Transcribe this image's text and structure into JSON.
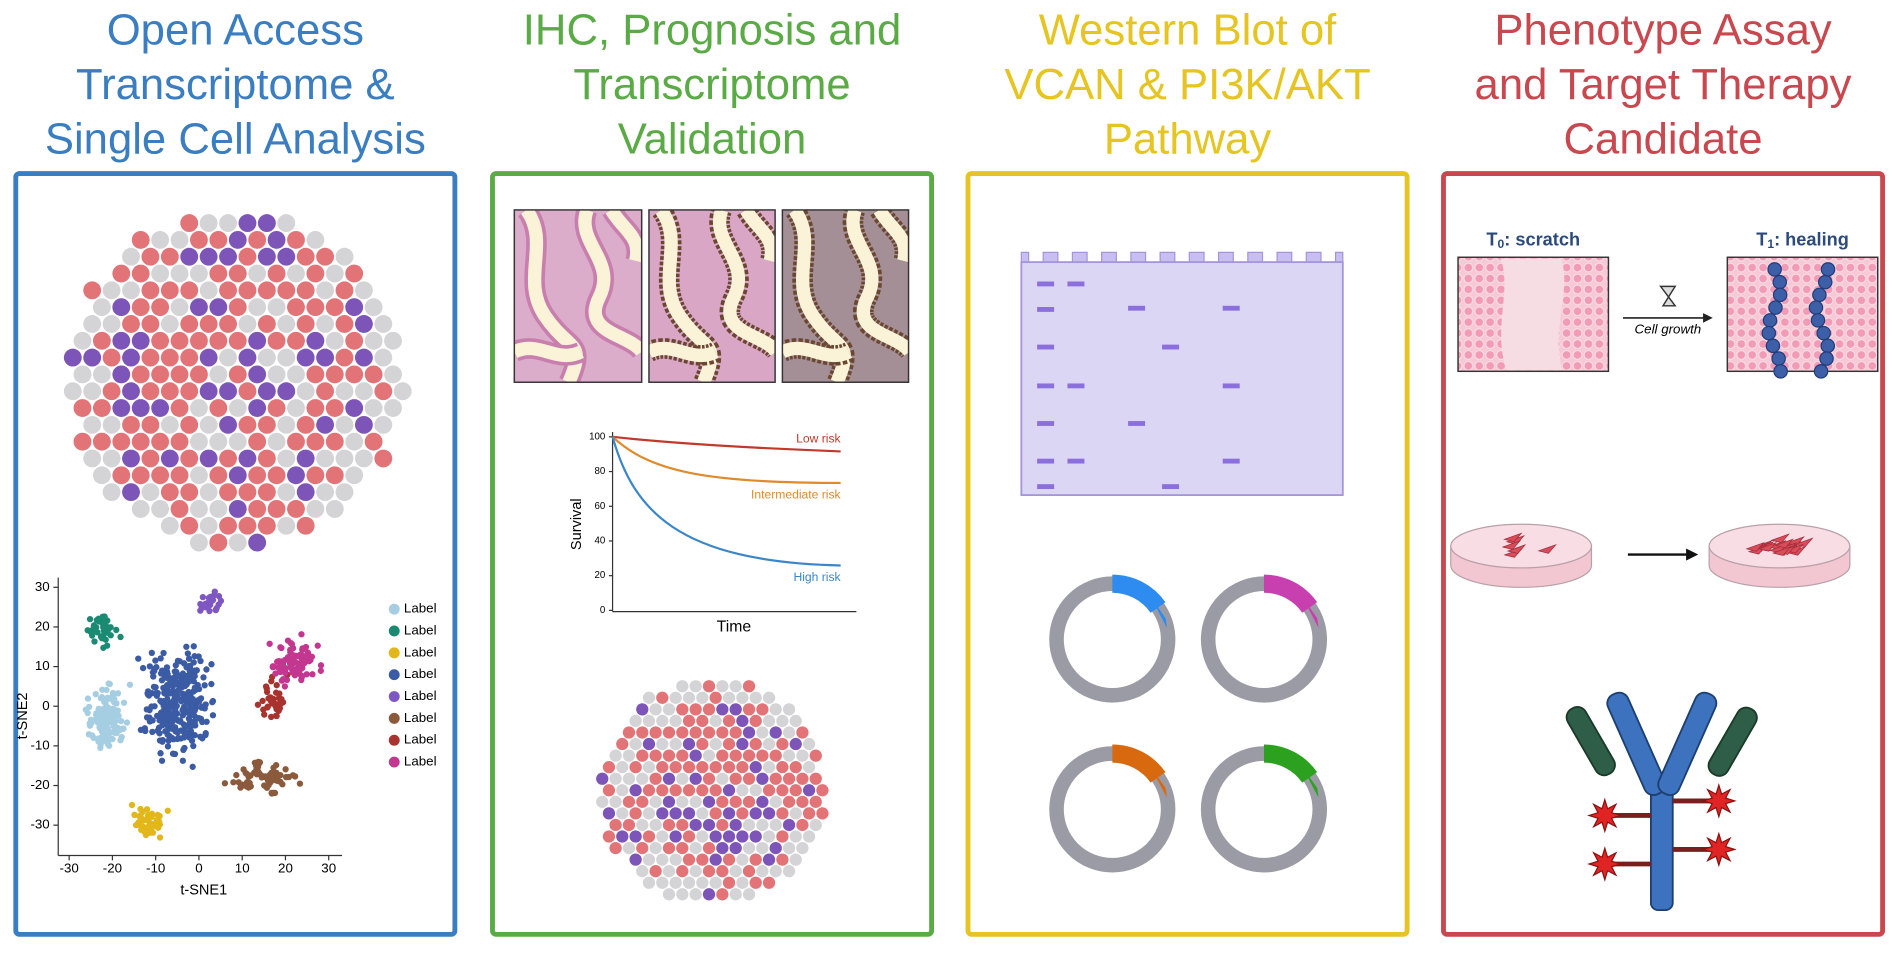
{
  "panels": [
    {
      "title": [
        "Open Access",
        "Transcriptome &",
        "Single Cell Analysis"
      ]
    },
    {
      "title": [
        "IHC, Prognosis and",
        "Transcriptome",
        "Validation"
      ]
    },
    {
      "title": [
        "Western Blot of",
        "VCAN & PI3K/AKT",
        "Pathway"
      ]
    },
    {
      "title": [
        "Phenotype Assay",
        "and Target Therapy",
        "Candidate"
      ]
    }
  ],
  "tsne": {
    "xlabel": "t-SNE1",
    "ylabel": "t-SNE2",
    "xticks": [
      -30,
      -20,
      -10,
      0,
      10,
      20,
      30
    ],
    "yticks": [
      30,
      20,
      10,
      0,
      -10,
      -20,
      -30
    ],
    "legend": [
      "Label",
      "Label",
      "Label",
      "Label",
      "Label",
      "Label",
      "Label",
      "Label"
    ]
  },
  "survival": {
    "ylabel": "Survival",
    "xlabel": "Time",
    "yticks": [
      100,
      80,
      60,
      40,
      20,
      0
    ],
    "curves": [
      "Low risk",
      "Intermediate risk",
      "High risk"
    ]
  },
  "scratch": {
    "before": {
      "base": "T",
      "subscript": "0",
      "text": ": scratch"
    },
    "after": {
      "base": "T",
      "subscript": "1",
      "text": ": healing"
    },
    "arrow": "Cell growth"
  }
}
